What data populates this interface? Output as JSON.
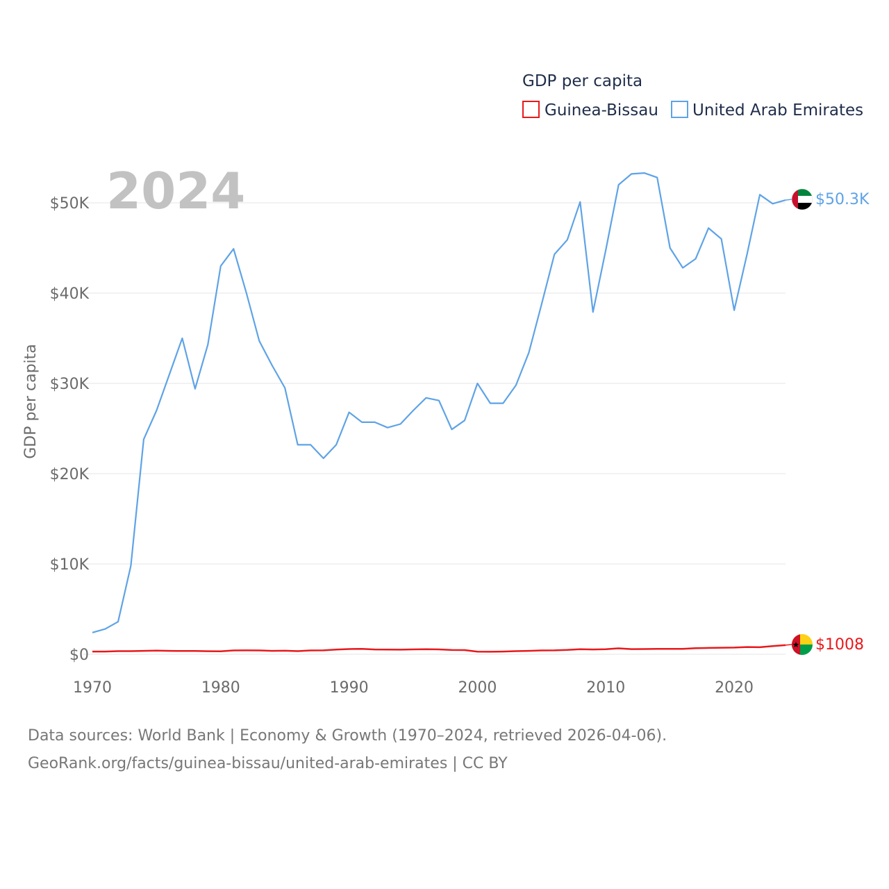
{
  "chart_data": {
    "type": "line",
    "title": "2024",
    "ylabel": "GDP per capita",
    "xlabel": "",
    "xlim": [
      1970,
      2024
    ],
    "ylim": [
      0,
      55000
    ],
    "yticks": [
      0,
      10000,
      20000,
      30000,
      40000,
      50000
    ],
    "ytick_labels": [
      "$0",
      "$10K",
      "$20K",
      "$30K",
      "$40K",
      "$50K"
    ],
    "xticks": [
      1970,
      1980,
      1990,
      2000,
      2010,
      2020
    ],
    "xtick_labels": [
      "1970",
      "1980",
      "1990",
      "2000",
      "2010",
      "2020"
    ],
    "legend": {
      "title": "GDP per capita",
      "position": "top-right",
      "entries": [
        "Guinea-Bissau",
        "United Arab Emirates"
      ]
    },
    "grid": true,
    "x": [
      1970,
      1971,
      1972,
      1973,
      1974,
      1975,
      1976,
      1977,
      1978,
      1979,
      1980,
      1981,
      1982,
      1983,
      1984,
      1985,
      1986,
      1987,
      1988,
      1989,
      1990,
      1991,
      1992,
      1993,
      1994,
      1995,
      1996,
      1997,
      1998,
      1999,
      2000,
      2001,
      2002,
      2003,
      2004,
      2005,
      2006,
      2007,
      2008,
      2009,
      2010,
      2011,
      2012,
      2013,
      2014,
      2015,
      2016,
      2017,
      2018,
      2019,
      2020,
      2021,
      2022,
      2023,
      2024
    ],
    "series": [
      {
        "name": "Guinea-Bissau",
        "color": "#e8191c",
        "end_label": "$1008",
        "values": [
          300,
          300,
          350,
          350,
          380,
          400,
          380,
          360,
          360,
          340,
          320,
          420,
          430,
          420,
          380,
          390,
          350,
          420,
          430,
          520,
          580,
          600,
          530,
          520,
          510,
          540,
          560,
          540,
          470,
          460,
          290,
          280,
          300,
          350,
          380,
          420,
          430,
          480,
          560,
          530,
          560,
          650,
          570,
          580,
          590,
          590,
          600,
          680,
          700,
          720,
          740,
          800,
          780,
          900,
          1008
        ]
      },
      {
        "name": "United Arab Emirates",
        "color": "#5ea3e6",
        "end_label": "$50.3K",
        "values": [
          2400,
          2800,
          3600,
          9800,
          23800,
          27000,
          31000,
          35000,
          29400,
          34300,
          43000,
          44900,
          40000,
          34700,
          32000,
          29500,
          23200,
          23200,
          21700,
          23200,
          26800,
          25700,
          25700,
          25100,
          25500,
          27000,
          28400,
          28100,
          24900,
          25900,
          30000,
          27800,
          27800,
          29800,
          33400,
          38800,
          44300,
          45900,
          50100,
          37900,
          44800,
          52000,
          53200,
          53300,
          52800,
          45000,
          42800,
          43800,
          47200,
          46000,
          38100,
          44300,
          50900,
          49900,
          50300
        ]
      }
    ]
  },
  "source": {
    "line1": "Data sources: World Bank | Economy & Growth (1970–2024, retrieved 2026-04-06).",
    "line2": "GeoRank.org/facts/guinea-bissau/united-arab-emirates | CC BY"
  }
}
